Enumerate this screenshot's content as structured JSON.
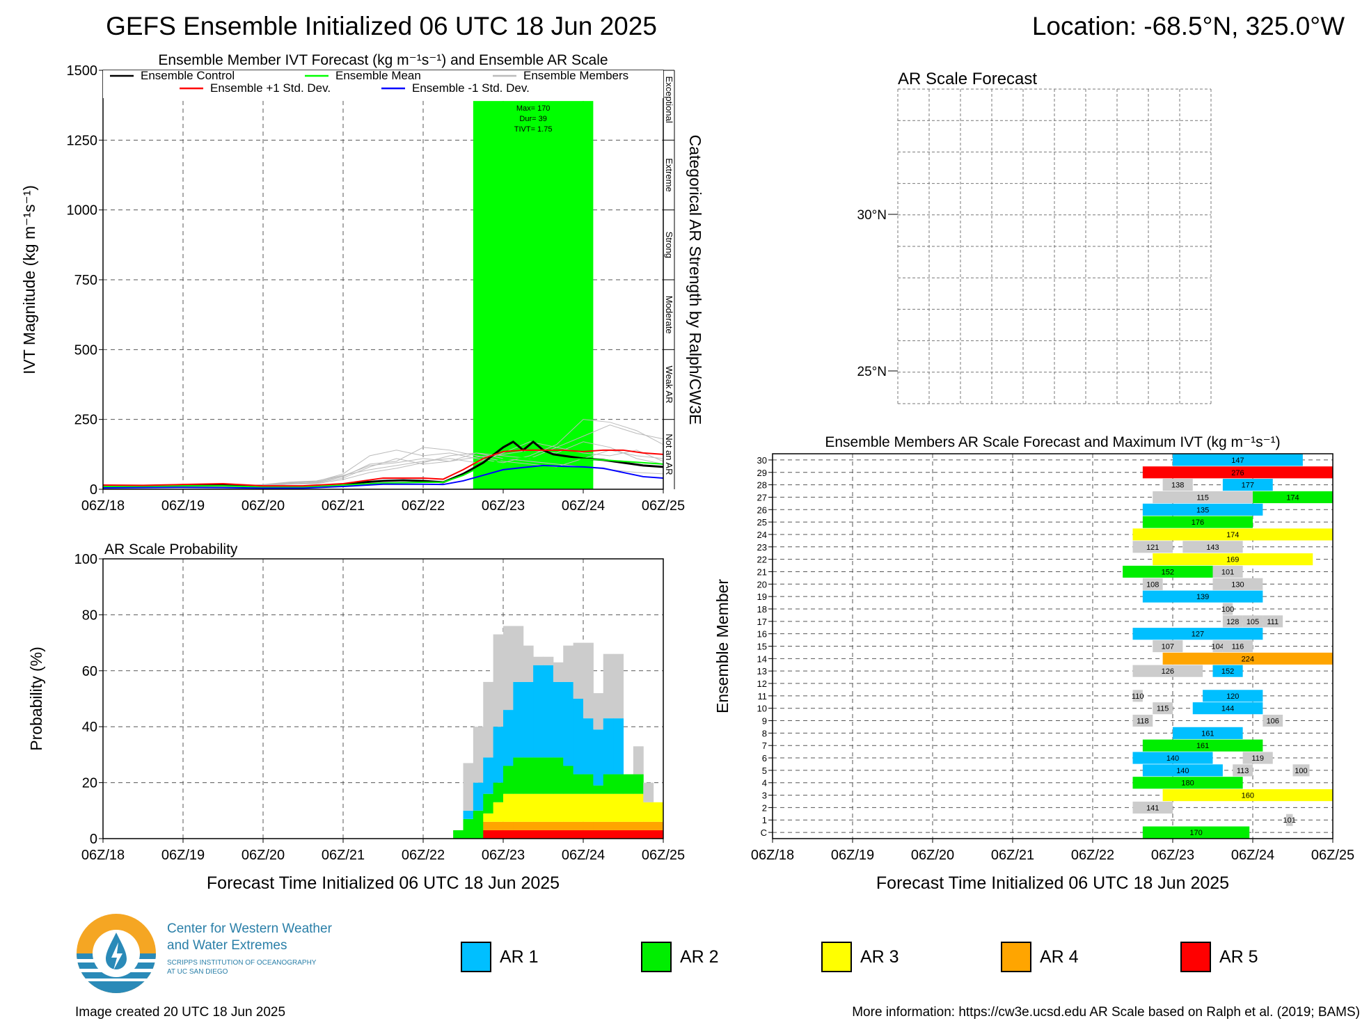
{
  "header": {
    "title": "GEFS Ensemble Initialized 06 UTC 18 Jun 2025",
    "location": "Location: -68.5°N, 325.0°W"
  },
  "colors": {
    "ar1": "#00bfff",
    "ar2": "#00ee00",
    "ar3": "#ffff00",
    "ar4": "#ffa500",
    "ar5": "#ff0000",
    "below": "#cccccc",
    "control": "#000000",
    "mean": "#00ff00",
    "plus_std": "#ff0000",
    "minus_std": "#0000ff",
    "members": "#bbbbbb",
    "shade": "#00ff00"
  },
  "time_ticks": [
    "06Z/18",
    "06Z/19",
    "06Z/20",
    "06Z/21",
    "06Z/22",
    "06Z/23",
    "06Z/24",
    "06Z/25"
  ],
  "footer": {
    "created": "Image created 20 UTC 18 Jun 2025",
    "more_info": "More information: https://cw3e.ucsd.edu AR Scale based on Ralph et al. (2019; BAMS)"
  },
  "logo": {
    "line1": "Center for Western Weather",
    "line2": "and Water Extremes",
    "line3": "SCRIPPS INSTITUTION OF OCEANOGRAPHY",
    "line4": "AT UC SAN DIEGO"
  },
  "legend_bottom": [
    "AR 1",
    "AR 2",
    "AR 3",
    "AR 4",
    "AR 5"
  ],
  "chart_data": [
    {
      "id": "ivt",
      "type": "line",
      "title": "Ensemble Member IVT Forecast (kg m⁻¹s⁻¹) and Ensemble AR Scale",
      "ylabel": "IVT Magnitude (kg m⁻¹s⁻¹)",
      "right_label": "Categorical AR Strength by Ralph/CW3E",
      "categories_right": [
        "Not an AR",
        "Weak AR",
        "Moderate",
        "Strong",
        "Extreme",
        "Exceptional"
      ],
      "ylim": [
        0,
        1500
      ],
      "yticks": [
        0,
        250,
        500,
        750,
        1000,
        1250,
        1500
      ],
      "xlim_hours": [
        0,
        168
      ],
      "annotation": [
        "Max= 170",
        "Dur= 39",
        "TIVT= 1.75"
      ],
      "legend": [
        "Ensemble Control",
        "Ensemble Mean",
        "Ensemble Members",
        "Ensemble +1 Std. Dev.",
        "Ensemble -1 Std. Dev."
      ],
      "ar_shading": {
        "start_hour": 111,
        "end_hour": 147,
        "top": 1390
      },
      "mean_shading": [
        [
          111,
          0
        ],
        [
          117,
          10
        ],
        [
          123,
          20
        ],
        [
          129,
          25
        ],
        [
          135,
          35
        ],
        [
          141,
          50
        ],
        [
          147,
          65
        ]
      ],
      "series": [
        {
          "name": "Ensemble Control",
          "x": [
            0,
            6,
            12,
            18,
            24,
            30,
            36,
            42,
            48,
            54,
            60,
            66,
            72,
            78,
            84,
            90,
            96,
            102,
            108,
            114,
            120,
            123,
            126,
            129,
            132,
            135,
            138,
            141,
            144,
            150,
            156,
            162,
            168
          ],
          "y": [
            12,
            10,
            11,
            13,
            14,
            15,
            14,
            12,
            10,
            9,
            10,
            12,
            18,
            25,
            30,
            32,
            30,
            25,
            55,
            95,
            150,
            170,
            140,
            170,
            140,
            125,
            120,
            115,
            110,
            105,
            95,
            85,
            80
          ]
        },
        {
          "name": "Ensemble Mean",
          "x": [
            0,
            12,
            24,
            36,
            48,
            60,
            72,
            84,
            96,
            102,
            108,
            114,
            120,
            126,
            132,
            138,
            144,
            150,
            156,
            162,
            168
          ],
          "y": [
            10,
            10,
            12,
            12,
            8,
            8,
            15,
            22,
            25,
            25,
            50,
            85,
            108,
            112,
            112,
            110,
            108,
            105,
            100,
            95,
            90
          ]
        },
        {
          "name": "Ensemble +1 Std. Dev.",
          "x": [
            0,
            12,
            24,
            36,
            48,
            60,
            72,
            84,
            96,
            102,
            108,
            114,
            120,
            126,
            132,
            138,
            144,
            150,
            156,
            162,
            168
          ],
          "y": [
            15,
            14,
            17,
            20,
            12,
            12,
            20,
            40,
            40,
            36,
            70,
            110,
            135,
            140,
            140,
            140,
            135,
            140,
            140,
            130,
            125
          ]
        },
        {
          "name": "Ensemble -1 Std. Dev.",
          "x": [
            0,
            12,
            24,
            36,
            48,
            60,
            72,
            84,
            96,
            102,
            108,
            114,
            120,
            126,
            132,
            138,
            144,
            150,
            156,
            162,
            168
          ],
          "y": [
            5,
            6,
            7,
            6,
            4,
            4,
            10,
            18,
            18,
            17,
            30,
            50,
            70,
            78,
            85,
            82,
            80,
            75,
            60,
            45,
            40
          ]
        }
      ],
      "members": [
        [
          5,
          8,
          10,
          10,
          6,
          6,
          14,
          20,
          22,
          40,
          80,
          110,
          90,
          100,
          130,
          120,
          110,
          150,
          190,
          230,
          200,
          180
        ],
        [
          10,
          12,
          14,
          15,
          10,
          9,
          16,
          24,
          28,
          55,
          120,
          140,
          120,
          130,
          110,
          95,
          120,
          160,
          250,
          240,
          210,
          160
        ],
        [
          8,
          9,
          11,
          12,
          7,
          8,
          13,
          18,
          24,
          45,
          90,
          100,
          150,
          140,
          120,
          100,
          90,
          80,
          110,
          140,
          120,
          110
        ],
        [
          12,
          10,
          13,
          14,
          9,
          10,
          17,
          26,
          30,
          50,
          70,
          85,
          100,
          110,
          95,
          130,
          170,
          150,
          130,
          120,
          140,
          100
        ],
        [
          6,
          7,
          9,
          10,
          5,
          6,
          12,
          18,
          20,
          35,
          60,
          75,
          95,
          120,
          130,
          110,
          100,
          90,
          80,
          70,
          60,
          55
        ],
        [
          9,
          11,
          12,
          13,
          8,
          9,
          15,
          22,
          26,
          48,
          85,
          95,
          110,
          100,
          115,
          125,
          140,
          130,
          170,
          150,
          110,
          90
        ]
      ]
    },
    {
      "id": "prob",
      "type": "area",
      "title": "AR Scale Probability",
      "ylabel": "Probability (%)",
      "xlabel": "Forecast Time Initialized 06 UTC 18 Jun 2025",
      "ylim": [
        0,
        100
      ],
      "yticks": [
        0,
        20,
        40,
        60,
        80,
        100
      ],
      "step_hours": 3,
      "x_start_hours": [
        105,
        108,
        111,
        114,
        117,
        120,
        123,
        126,
        129,
        132,
        135,
        138,
        141,
        144,
        147,
        150,
        153,
        156,
        159,
        162,
        165
      ],
      "stack_order": [
        "AR 5",
        "AR 4",
        "AR 3",
        "AR 2",
        "AR 1",
        "Below AR"
      ],
      "series": [
        {
          "name": "AR 5",
          "values": [
            0,
            0,
            0,
            3,
            3,
            3,
            3,
            3,
            3,
            3,
            3,
            3,
            3,
            3,
            3,
            3,
            3,
            3,
            3,
            3,
            3
          ]
        },
        {
          "name": "AR 4",
          "values": [
            0,
            0,
            0,
            3,
            3,
            3,
            3,
            3,
            3,
            3,
            3,
            3,
            3,
            3,
            3,
            3,
            3,
            3,
            3,
            3,
            3
          ]
        },
        {
          "name": "AR 3",
          "values": [
            0,
            0,
            0,
            3,
            7,
            10,
            10,
            10,
            10,
            10,
            10,
            10,
            10,
            10,
            10,
            10,
            10,
            10,
            10,
            7,
            7
          ]
        },
        {
          "name": "AR 2",
          "values": [
            3,
            7,
            10,
            7,
            7,
            10,
            13,
            13,
            13,
            13,
            13,
            10,
            7,
            7,
            3,
            7,
            7,
            7,
            7,
            0,
            0
          ]
        },
        {
          "name": "AR 1",
          "values": [
            0,
            3,
            10,
            13,
            20,
            20,
            27,
            27,
            33,
            33,
            27,
            30,
            27,
            20,
            20,
            20,
            20,
            0,
            0,
            0,
            0
          ]
        },
        {
          "name": "Below AR",
          "values": [
            0,
            17,
            20,
            27,
            33,
            30,
            20,
            13,
            3,
            3,
            7,
            13,
            20,
            27,
            13,
            23,
            23,
            0,
            10,
            7,
            0
          ]
        }
      ]
    },
    {
      "id": "map",
      "type": "map",
      "title": "AR Scale Forecast",
      "lat_labels": [
        "30°N",
        "25°N"
      ]
    },
    {
      "id": "members",
      "type": "bar",
      "title": "Ensemble Members AR Scale Forecast and Maximum IVT (kg m⁻¹s⁻¹)",
      "ylabel": "Ensemble Member",
      "xlabel": "Forecast Time Initialized 06 UTC 18 Jun 2025",
      "rows": [
        "C",
        "1",
        "2",
        "3",
        "4",
        "5",
        "6",
        "7",
        "8",
        "9",
        "10",
        "11",
        "12",
        "13",
        "14",
        "15",
        "16",
        "17",
        "18",
        "19",
        "20",
        "21",
        "22",
        "23",
        "24",
        "25",
        "26",
        "27",
        "28",
        "29",
        "30"
      ],
      "bars": [
        {
          "row": "C",
          "start": 111,
          "end": 143,
          "cat": 2,
          "label": "170"
        },
        {
          "row": "1",
          "start": 154,
          "end": 156,
          "cat": 0,
          "label": "101"
        },
        {
          "row": "2",
          "start": 108,
          "end": 120,
          "cat": 0,
          "label": "141"
        },
        {
          "row": "3",
          "start": 117,
          "end": 168,
          "cat": 3,
          "label": "160"
        },
        {
          "row": "4",
          "start": 108,
          "end": 141,
          "cat": 2,
          "label": "180"
        },
        {
          "row": "5",
          "start": 111,
          "end": 135,
          "cat": 1,
          "label": "140"
        },
        {
          "row": "5",
          "start": 138,
          "end": 144,
          "cat": 0,
          "label": "113"
        },
        {
          "row": "5",
          "start": 156,
          "end": 161,
          "cat": 0,
          "label": "100"
        },
        {
          "row": "6",
          "start": 108,
          "end": 132,
          "cat": 1,
          "label": "140"
        },
        {
          "row": "6",
          "start": 141,
          "end": 150,
          "cat": 0,
          "label": "119"
        },
        {
          "row": "7",
          "start": 111,
          "end": 147,
          "cat": 2,
          "label": "161"
        },
        {
          "row": "8",
          "start": 120,
          "end": 141,
          "cat": 1,
          "label": "161"
        },
        {
          "row": "9",
          "start": 108,
          "end": 114,
          "cat": 0,
          "label": "118"
        },
        {
          "row": "9",
          "start": 147,
          "end": 153,
          "cat": 0,
          "label": "106"
        },
        {
          "row": "10",
          "start": 114,
          "end": 120,
          "cat": 0,
          "label": "115"
        },
        {
          "row": "10",
          "start": 126,
          "end": 147,
          "cat": 1,
          "label": "144"
        },
        {
          "row": "11",
          "start": 108,
          "end": 111,
          "cat": 0,
          "label": "110"
        },
        {
          "row": "11",
          "start": 129,
          "end": 147,
          "cat": 1,
          "label": "120"
        },
        {
          "row": "13",
          "start": 108,
          "end": 129,
          "cat": 0,
          "label": "126"
        },
        {
          "row": "13",
          "start": 132,
          "end": 141,
          "cat": 1,
          "label": "152"
        },
        {
          "row": "14",
          "start": 117,
          "end": 168,
          "cat": 4,
          "label": "224"
        },
        {
          "row": "15",
          "start": 114,
          "end": 123,
          "cat": 0,
          "label": "107"
        },
        {
          "row": "15",
          "start": 132,
          "end": 135,
          "cat": 0,
          "label": "104"
        },
        {
          "row": "15",
          "start": 135,
          "end": 144,
          "cat": 0,
          "label": "116"
        },
        {
          "row": "16",
          "start": 108,
          "end": 147,
          "cat": 1,
          "label": "127"
        },
        {
          "row": "17",
          "start": 135,
          "end": 141,
          "cat": 0,
          "label": "128"
        },
        {
          "row": "17",
          "start": 141,
          "end": 147,
          "cat": 0,
          "label": "105"
        },
        {
          "row": "17",
          "start": 147,
          "end": 153,
          "cat": 0,
          "label": "111"
        },
        {
          "row": "18",
          "start": 135,
          "end": 138,
          "cat": 0,
          "label": "100"
        },
        {
          "row": "19",
          "start": 111,
          "end": 147,
          "cat": 1,
          "label": "139"
        },
        {
          "row": "20",
          "start": 111,
          "end": 117,
          "cat": 0,
          "label": "108"
        },
        {
          "row": "20",
          "start": 132,
          "end": 147,
          "cat": 0,
          "label": "130"
        },
        {
          "row": "21",
          "start": 105,
          "end": 132,
          "cat": 2,
          "label": "152"
        },
        {
          "row": "21",
          "start": 132,
          "end": 141,
          "cat": 0,
          "label": "101"
        },
        {
          "row": "22",
          "start": 114,
          "end": 162,
          "cat": 3,
          "label": "169"
        },
        {
          "row": "23",
          "start": 108,
          "end": 120,
          "cat": 0,
          "label": "121"
        },
        {
          "row": "23",
          "start": 123,
          "end": 141,
          "cat": 0,
          "label": "143"
        },
        {
          "row": "24",
          "start": 108,
          "end": 168,
          "cat": 3,
          "label": "174"
        },
        {
          "row": "25",
          "start": 111,
          "end": 144,
          "cat": 2,
          "label": "176"
        },
        {
          "row": "26",
          "start": 111,
          "end": 147,
          "cat": 1,
          "label": "135"
        },
        {
          "row": "27",
          "start": 114,
          "end": 144,
          "cat": 0,
          "label": "115"
        },
        {
          "row": "27",
          "start": 144,
          "end": 168,
          "cat": 2,
          "label": "174"
        },
        {
          "row": "28",
          "start": 117,
          "end": 126,
          "cat": 0,
          "label": "138"
        },
        {
          "row": "28",
          "start": 135,
          "end": 150,
          "cat": 1,
          "label": "177"
        },
        {
          "row": "29",
          "start": 111,
          "end": 168,
          "cat": 5,
          "label": "276"
        },
        {
          "row": "30",
          "start": 120,
          "end": 159,
          "cat": 1,
          "label": "147"
        }
      ]
    }
  ]
}
